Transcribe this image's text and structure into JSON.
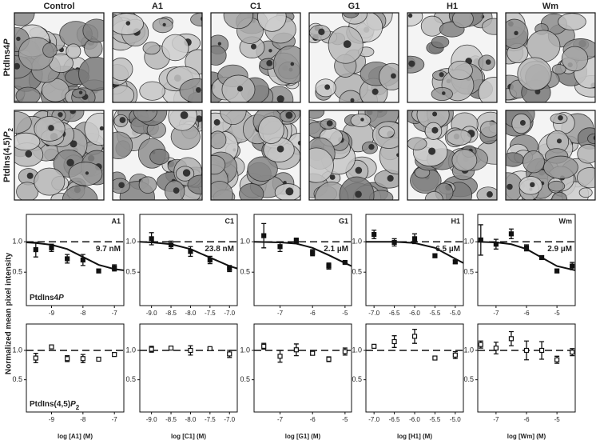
{
  "image_grid": {
    "column_titles": [
      "Control",
      "A1",
      "C1",
      "G1",
      "H1",
      "Wm"
    ],
    "row_labels": [
      [
        "PtdIns4",
        "P"
      ],
      [
        "PtdIns(4,5)",
        "P",
        "2"
      ]
    ]
  },
  "y_label": "Normalized mean pixel intensity",
  "chart_data": [
    {
      "type": "scatter",
      "title": "A1",
      "annotation": "9.7 nM",
      "row_label": [
        "PtdIns4",
        "P"
      ],
      "marker": "filled",
      "x": [
        -9.5,
        -9,
        -8.5,
        -8,
        -7.5,
        -7
      ],
      "values": [
        0.87,
        0.9,
        0.72,
        0.7,
        0.52,
        0.57
      ],
      "errors": [
        0.12,
        0.06,
        0.07,
        0.09,
        0.03,
        0.05
      ],
      "fit": {
        "x": [
          -9.8,
          -9.5,
          -9,
          -8.5,
          -8,
          -7.5,
          -7,
          -6.7
        ],
        "values": [
          0.99,
          0.98,
          0.95,
          0.88,
          0.75,
          0.62,
          0.55,
          0.53
        ]
      },
      "reference_line": 1,
      "xlim": [
        -9.8,
        -6.7
      ],
      "ylim": [
        -0.05,
        1.45
      ],
      "xticks": [
        -9,
        -8,
        -7
      ],
      "yticks": [
        0.5,
        {
          "value": 1,
          "label": "1.0"
        }
      ]
    },
    {
      "type": "scatter",
      "title": "C1",
      "annotation": "23.8 nM",
      "marker": "filled",
      "x": [
        -9,
        -8.5,
        -8,
        -7.5,
        -7
      ],
      "values": [
        1.05,
        0.95,
        0.84,
        0.7,
        0.56
      ],
      "errors": [
        0.1,
        0.06,
        0.08,
        0.06,
        0.05
      ],
      "fit": {
        "x": [
          -9.3,
          -9,
          -8.5,
          -8,
          -7.5,
          -7,
          -6.8
        ],
        "values": [
          1,
          0.99,
          0.96,
          0.88,
          0.74,
          0.6,
          0.56
        ]
      },
      "reference_line": 1,
      "xlim": [
        -9.3,
        -6.8
      ],
      "ylim": [
        -0.05,
        1.45
      ],
      "xticks": [
        {
          "value": -9,
          "label": "-9.0"
        },
        -8.5,
        {
          "value": -8,
          "label": "-8.0"
        },
        -7.5,
        {
          "value": -7,
          "label": "-7.0"
        }
      ],
      "yticks": [
        0.5,
        {
          "value": 1,
          "label": "1.0"
        }
      ]
    },
    {
      "type": "scatter",
      "title": "G1",
      "annotation": "2.1 µM",
      "marker": "filled",
      "x": [
        -7.5,
        -7,
        -6.5,
        -6,
        -5.5,
        -5
      ],
      "values": [
        1.1,
        0.92,
        1.02,
        0.82,
        0.6,
        0.66
      ],
      "errors": [
        0.2,
        0.08,
        0.04,
        0.05,
        0.05,
        0.02
      ],
      "fit": {
        "x": [
          -7.8,
          -7,
          -6.5,
          -6,
          -5.5,
          -5,
          -4.8
        ],
        "values": [
          1,
          0.99,
          0.97,
          0.9,
          0.78,
          0.65,
          0.6
        ]
      },
      "reference_line": 1,
      "xlim": [
        -7.8,
        -4.8
      ],
      "ylim": [
        -0.05,
        1.45
      ],
      "xticks": [
        -7,
        -6,
        -5
      ],
      "yticks": [
        0.5,
        {
          "value": 1,
          "label": "1.0"
        }
      ]
    },
    {
      "type": "scatter",
      "title": "H1",
      "annotation": "6.5 µM",
      "marker": "filled",
      "x": [
        -7,
        -6.5,
        -6,
        -5.5,
        -5
      ],
      "values": [
        1.12,
        0.99,
        1.05,
        0.77,
        0.67
      ],
      "errors": [
        0.07,
        0.06,
        0.08,
        0.03,
        0.03
      ],
      "fit": {
        "x": [
          -7.2,
          -6.5,
          -6,
          -5.5,
          -5,
          -4.8
        ],
        "values": [
          1,
          1,
          0.98,
          0.9,
          0.72,
          0.65
        ]
      },
      "reference_line": 1,
      "xlim": [
        -7.2,
        -4.8
      ],
      "ylim": [
        -0.05,
        1.45
      ],
      "xticks": [
        {
          "value": -7,
          "label": "-7.0"
        },
        -6.5,
        {
          "value": -6,
          "label": "-6.0"
        },
        -5.5,
        {
          "value": -5,
          "label": "-5.0"
        }
      ],
      "yticks": [
        0.5,
        {
          "value": 1,
          "label": "1.0"
        }
      ]
    },
    {
      "type": "scatter",
      "title": "Wm",
      "annotation": "2.9 µM",
      "marker": "filled",
      "x": [
        -7.5,
        -7,
        -6.5,
        -6,
        -5.5,
        -5,
        -4.5
      ],
      "values": [
        1.03,
        0.96,
        1.13,
        0.9,
        0.74,
        0.52,
        0.6
      ],
      "errors": [
        0.25,
        0.08,
        0.08,
        0.05,
        0.03,
        0.03,
        0.06
      ],
      "fit": {
        "x": [
          -7.6,
          -7,
          -6.5,
          -6,
          -5.5,
          -5,
          -4.4
        ],
        "values": [
          1,
          0.99,
          0.96,
          0.88,
          0.74,
          0.6,
          0.53
        ]
      },
      "reference_line": 1,
      "xlim": [
        -7.6,
        -4.4
      ],
      "ylim": [
        -0.05,
        1.45
      ],
      "xticks": [
        -7,
        -6,
        -5
      ],
      "yticks": [
        0.5,
        {
          "value": 1,
          "label": "1.0"
        }
      ]
    },
    {
      "type": "scatter",
      "row_label": [
        "PtdIns(4,5)",
        "P",
        "2"
      ],
      "marker": "open",
      "x_label": "log [A1] (M)",
      "x": [
        -9.5,
        -9,
        -8.5,
        -8,
        -7.5,
        -7
      ],
      "values": [
        0.87,
        1.06,
        0.86,
        0.86,
        0.85,
        0.93
      ],
      "errors": [
        0.08,
        0.03,
        0.05,
        0.07,
        0.02,
        0.03
      ],
      "reference_line": 1,
      "xlim": [
        -9.8,
        -6.7
      ],
      "ylim": [
        -0.05,
        1.45
      ],
      "xticks": [
        -9,
        -8,
        -7
      ],
      "yticks": [
        0.5,
        {
          "value": 1,
          "label": "1.0"
        }
      ]
    },
    {
      "type": "scatter",
      "marker": "open",
      "x_label": "log [C1] (M)",
      "x": [
        -9,
        -8.5,
        -8,
        -7.5,
        -7
      ],
      "values": [
        1.02,
        1.04,
        1.0,
        1.03,
        0.94
      ],
      "errors": [
        0.05,
        0.03,
        0.08,
        0.02,
        0.06
      ],
      "reference_line": 1,
      "xlim": [
        -9.3,
        -6.8
      ],
      "ylim": [
        -0.05,
        1.45
      ],
      "xticks": [
        {
          "value": -9,
          "label": "-9.0"
        },
        -8.5,
        {
          "value": -8,
          "label": "-8.0"
        },
        -7.5,
        {
          "value": -7,
          "label": "-7.0"
        }
      ],
      "yticks": [
        0.5,
        {
          "value": 1,
          "label": "1.0"
        }
      ]
    },
    {
      "type": "scatter",
      "marker": "open",
      "x_label": "log [G1] (M)",
      "x": [
        -7.5,
        -7,
        -6.5,
        -6,
        -5.5,
        -5
      ],
      "values": [
        1.07,
        0.9,
        1.01,
        0.95,
        0.85,
        0.98
      ],
      "errors": [
        0.05,
        0.1,
        0.1,
        0.03,
        0.04,
        0.06
      ],
      "reference_line": 1,
      "xlim": [
        -7.8,
        -4.8
      ],
      "ylim": [
        -0.05,
        1.45
      ],
      "xticks": [
        -7,
        -6,
        -5
      ],
      "yticks": [
        0.5,
        {
          "value": 1,
          "label": "1.0"
        }
      ]
    },
    {
      "type": "scatter",
      "marker": "open",
      "x_label": "log [H1] (M)",
      "x": [
        -7,
        -6.5,
        -6,
        -5.5,
        -5
      ],
      "values": [
        1.07,
        1.15,
        1.24,
        0.87,
        0.92
      ],
      "errors": [
        0.02,
        0.1,
        0.12,
        0.02,
        0.06
      ],
      "reference_line": 1,
      "xlim": [
        -7.2,
        -4.8
      ],
      "ylim": [
        -0.05,
        1.45
      ],
      "xticks": [
        {
          "value": -7,
          "label": "-7.0"
        },
        -6.5,
        {
          "value": -6,
          "label": "-6.0"
        },
        -5.5,
        {
          "value": -5,
          "label": "-5.0"
        }
      ],
      "yticks": [
        0.5,
        {
          "value": 1,
          "label": "1.0"
        }
      ]
    },
    {
      "type": "scatter",
      "marker": "open",
      "x_label": "log [Wm] (M)",
      "x": [
        -7.5,
        -7,
        -6.5,
        -6,
        -5.5,
        -5,
        -4.5
      ],
      "values": [
        1.1,
        1.04,
        1.2,
        1.0,
        1.0,
        0.84,
        0.97
      ],
      "errors": [
        0.06,
        0.1,
        0.12,
        0.16,
        0.15,
        0.06,
        0.06
      ],
      "reference_line": 1,
      "xlim": [
        -7.6,
        -4.4
      ],
      "ylim": [
        -0.05,
        1.45
      ],
      "xticks": [
        -7,
        -6,
        -5
      ],
      "yticks": [
        0.5,
        {
          "value": 1,
          "label": "1.0"
        }
      ]
    }
  ]
}
